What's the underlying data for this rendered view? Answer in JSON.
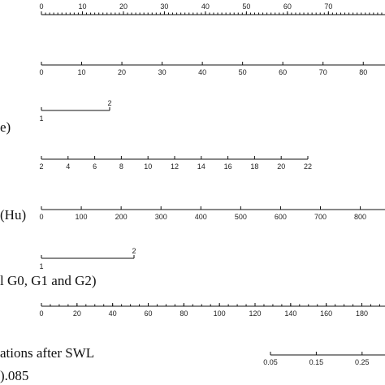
{
  "chart_data": {
    "type": "nomogram",
    "rows": [
      {
        "id": "points",
        "label": "",
        "ticks": [
          0,
          10,
          20,
          30,
          40,
          50,
          60,
          70
        ],
        "minor_step": 1
      },
      {
        "id": "row2",
        "label": "",
        "ticks": [
          0,
          10,
          20,
          30,
          40,
          50,
          60,
          70,
          80
        ]
      },
      {
        "id": "row3",
        "label": "e)",
        "ticks": [
          "1",
          "2"
        ]
      },
      {
        "id": "row4",
        "label": "",
        "ticks": [
          2,
          4,
          6,
          8,
          10,
          12,
          14,
          16,
          18,
          20,
          22
        ]
      },
      {
        "id": "row5",
        "label": "(Hu)",
        "ticks": [
          0,
          100,
          200,
          300,
          400,
          500,
          600,
          700,
          800
        ]
      },
      {
        "id": "row6",
        "label": "l G0, G1 and G2)",
        "ticks": [
          "1",
          "2"
        ]
      },
      {
        "id": "row7",
        "label": "",
        "ticks": [
          0,
          20,
          40,
          60,
          80,
          100,
          120,
          140,
          160,
          180
        ],
        "minor_step": 5
      },
      {
        "id": "row8",
        "label": "ations after SWL",
        "ticks": [
          0.05,
          0.15,
          0.25
        ]
      },
      {
        "id": "row9",
        "label": ").085",
        "ticks": []
      }
    ]
  }
}
